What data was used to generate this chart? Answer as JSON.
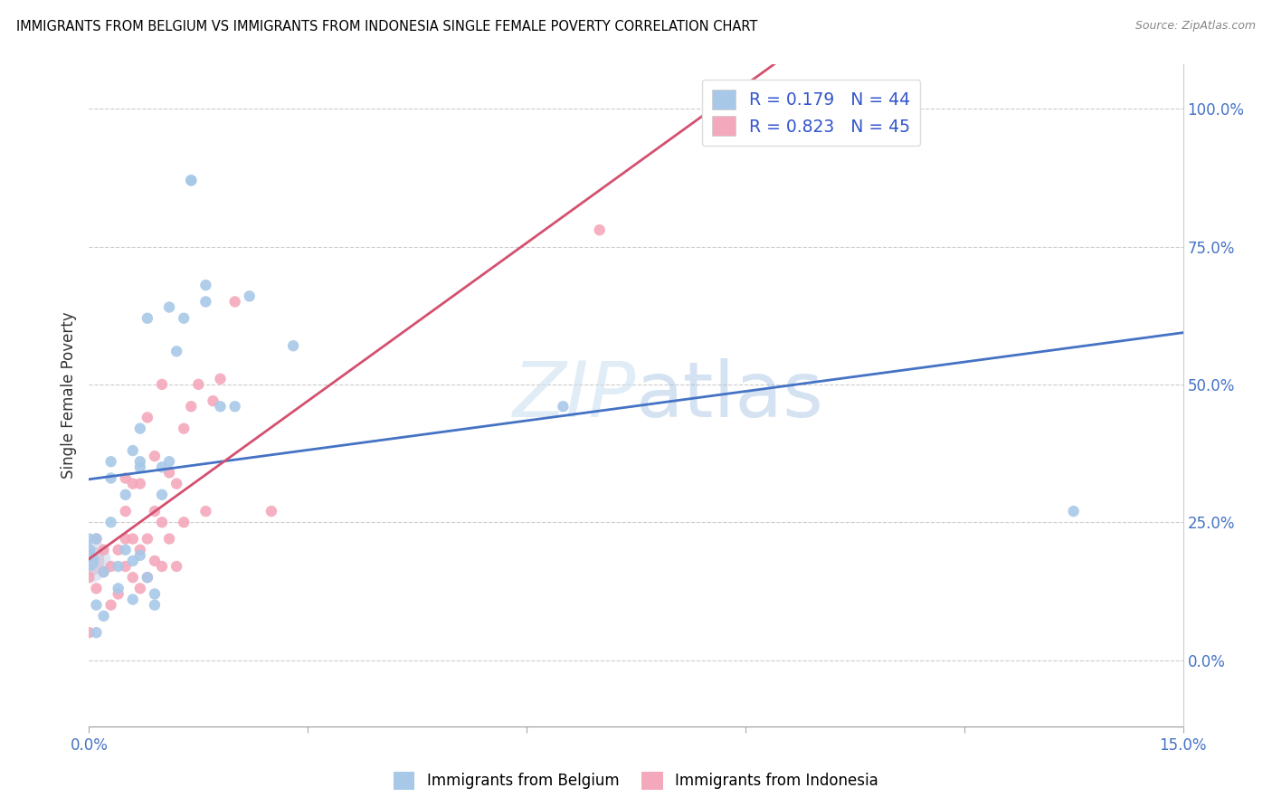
{
  "title": "IMMIGRANTS FROM BELGIUM VS IMMIGRANTS FROM INDONESIA SINGLE FEMALE POVERTY CORRELATION CHART",
  "source": "Source: ZipAtlas.com",
  "ylabel": "Single Female Poverty",
  "right_yticks_labels": [
    "0.0%",
    "25.0%",
    "50.0%",
    "75.0%",
    "100.0%"
  ],
  "right_yticks_vals": [
    0.0,
    0.25,
    0.5,
    0.75,
    1.0
  ],
  "watermark_zip": "ZIP",
  "watermark_atlas": "atlas",
  "legend_belgium": "Immigrants from Belgium",
  "legend_indonesia": "Immigrants from Indonesia",
  "R_belgium": "0.179",
  "N_belgium": "44",
  "R_indonesia": "0.823",
  "N_indonesia": "45",
  "color_belgium": "#a8c8e8",
  "color_indonesia": "#f4a8bc",
  "line_belgium": "#4472c4",
  "line_indonesia": "#d45070",
  "legend_text_color": "#3355cc",
  "xlim": [
    0.0,
    0.15
  ],
  "ylim": [
    -0.12,
    1.08
  ],
  "belgium_x": [
    0.0,
    0.0,
    0.0,
    0.001,
    0.001,
    0.001,
    0.002,
    0.002,
    0.003,
    0.003,
    0.003,
    0.004,
    0.004,
    0.005,
    0.005,
    0.006,
    0.006,
    0.006,
    0.007,
    0.007,
    0.007,
    0.007,
    0.008,
    0.008,
    0.009,
    0.009,
    0.01,
    0.01,
    0.011,
    0.011,
    0.012,
    0.013,
    0.014,
    0.014,
    0.016,
    0.016,
    0.018,
    0.02,
    0.022,
    0.028,
    0.065,
    0.135
  ],
  "belgium_y": [
    0.18,
    0.2,
    0.22,
    0.05,
    0.1,
    0.22,
    0.08,
    0.16,
    0.25,
    0.33,
    0.36,
    0.13,
    0.17,
    0.2,
    0.3,
    0.11,
    0.18,
    0.38,
    0.19,
    0.35,
    0.36,
    0.42,
    0.15,
    0.62,
    0.1,
    0.12,
    0.3,
    0.35,
    0.36,
    0.64,
    0.56,
    0.62,
    0.87,
    0.87,
    0.65,
    0.68,
    0.46,
    0.46,
    0.66,
    0.57,
    0.46,
    0.27
  ],
  "belgium_size": [
    250,
    100,
    80,
    80,
    80,
    80,
    80,
    80,
    80,
    80,
    80,
    80,
    80,
    80,
    80,
    80,
    80,
    80,
    80,
    80,
    80,
    80,
    80,
    80,
    80,
    80,
    80,
    80,
    80,
    80,
    80,
    80,
    80,
    80,
    80,
    80,
    80,
    80,
    80,
    80,
    80,
    80
  ],
  "indonesia_x": [
    0.0,
    0.0,
    0.001,
    0.001,
    0.002,
    0.002,
    0.003,
    0.003,
    0.004,
    0.004,
    0.005,
    0.005,
    0.005,
    0.005,
    0.006,
    0.006,
    0.006,
    0.007,
    0.007,
    0.007,
    0.008,
    0.008,
    0.008,
    0.009,
    0.009,
    0.009,
    0.01,
    0.01,
    0.01,
    0.011,
    0.011,
    0.012,
    0.012,
    0.013,
    0.013,
    0.014,
    0.015,
    0.016,
    0.017,
    0.018,
    0.02,
    0.025,
    0.07,
    0.09
  ],
  "indonesia_y": [
    0.05,
    0.15,
    0.13,
    0.22,
    0.16,
    0.2,
    0.1,
    0.17,
    0.12,
    0.2,
    0.17,
    0.22,
    0.27,
    0.33,
    0.15,
    0.22,
    0.32,
    0.13,
    0.2,
    0.32,
    0.15,
    0.22,
    0.44,
    0.18,
    0.27,
    0.37,
    0.17,
    0.25,
    0.5,
    0.22,
    0.34,
    0.17,
    0.32,
    0.25,
    0.42,
    0.46,
    0.5,
    0.27,
    0.47,
    0.51,
    0.65,
    0.27,
    0.78,
    1.0
  ],
  "indonesia_size": [
    80,
    80,
    80,
    80,
    80,
    80,
    80,
    80,
    80,
    80,
    80,
    80,
    80,
    80,
    80,
    80,
    80,
    80,
    80,
    80,
    80,
    80,
    80,
    80,
    80,
    80,
    80,
    80,
    80,
    80,
    80,
    80,
    80,
    80,
    80,
    80,
    80,
    80,
    80,
    80,
    80,
    80,
    80,
    80
  ],
  "xtick_positions": [
    0.0,
    0.03,
    0.06,
    0.09,
    0.12,
    0.15
  ],
  "xtick_labels": [
    "0.0%",
    "",
    "",
    "",
    "",
    "15.0%"
  ]
}
